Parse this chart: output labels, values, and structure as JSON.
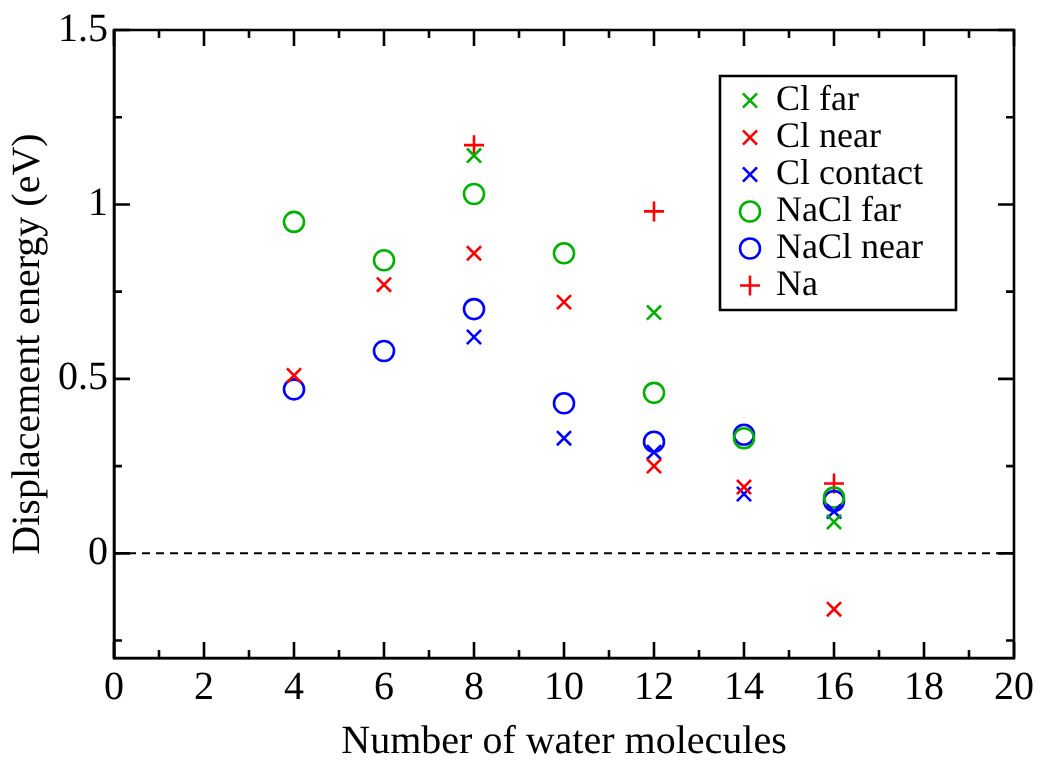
{
  "chart_data": {
    "type": "scatter",
    "xlabel": "Number of water molecules",
    "ylabel": "Displacement energy (eV)",
    "xlim": [
      0,
      20
    ],
    "ylim": [
      -0.3,
      1.5
    ],
    "xticks": [
      0,
      {
        "value": 1,
        "label": null
      },
      2,
      {
        "value": 3,
        "label": null
      },
      4,
      {
        "value": 5,
        "label": null
      },
      6,
      {
        "value": 7,
        "label": null
      },
      8,
      {
        "value": 9,
        "label": null
      },
      10,
      {
        "value": 11,
        "label": null
      },
      12,
      {
        "value": 13,
        "label": null
      },
      14,
      {
        "value": 15,
        "label": null
      },
      16,
      {
        "value": 17,
        "label": null
      },
      18,
      {
        "value": 19,
        "label": null
      },
      20
    ],
    "yticks": [
      {
        "value": -0.25,
        "label": null
      },
      0,
      {
        "value": 0.25,
        "label": null
      },
      0.5,
      {
        "value": 0.75,
        "label": null
      },
      1,
      {
        "value": 1.25,
        "label": null
      },
      1.5
    ],
    "grid": false,
    "legend": "top right",
    "ref_lines": [
      {
        "axis": "y",
        "value": 0,
        "line_style": "dashed",
        "color": "#000000"
      }
    ],
    "series": [
      {
        "name": "Cl far",
        "color": "#00b000",
        "marker": "cross",
        "x": [
          8,
          12,
          14,
          16
        ],
        "values": [
          1.14,
          0.69,
          null,
          0.09
        ]
      },
      {
        "name": "Cl near",
        "color": "#ff0000",
        "marker": "cross",
        "x": [
          4,
          6,
          8,
          10,
          12,
          14,
          16
        ],
        "values": [
          0.51,
          0.77,
          0.86,
          0.72,
          0.25,
          0.19,
          -0.16
        ]
      },
      {
        "name": "Cl contact",
        "color": "#0000ff",
        "marker": "cross",
        "x": [
          8,
          10,
          12,
          14,
          16
        ],
        "values": [
          0.62,
          0.33,
          0.29,
          0.17,
          0.12
        ]
      },
      {
        "name": "NaCl far",
        "color": "#00b000",
        "marker": "circle",
        "x": [
          4,
          6,
          8,
          10,
          12,
          14,
          16
        ],
        "values": [
          0.95,
          0.84,
          1.03,
          0.86,
          0.46,
          0.33,
          0.16
        ]
      },
      {
        "name": "NaCl near",
        "color": "#0000ff",
        "marker": "circle",
        "x": [
          4,
          6,
          8,
          10,
          12,
          14,
          16
        ],
        "values": [
          0.47,
          0.58,
          0.7,
          0.43,
          0.32,
          0.34,
          0.15
        ]
      },
      {
        "name": "Na",
        "color": "#ff0000",
        "marker": "plus",
        "x": [
          8,
          12,
          16
        ],
        "values": [
          1.17,
          0.98,
          0.2
        ]
      }
    ]
  }
}
